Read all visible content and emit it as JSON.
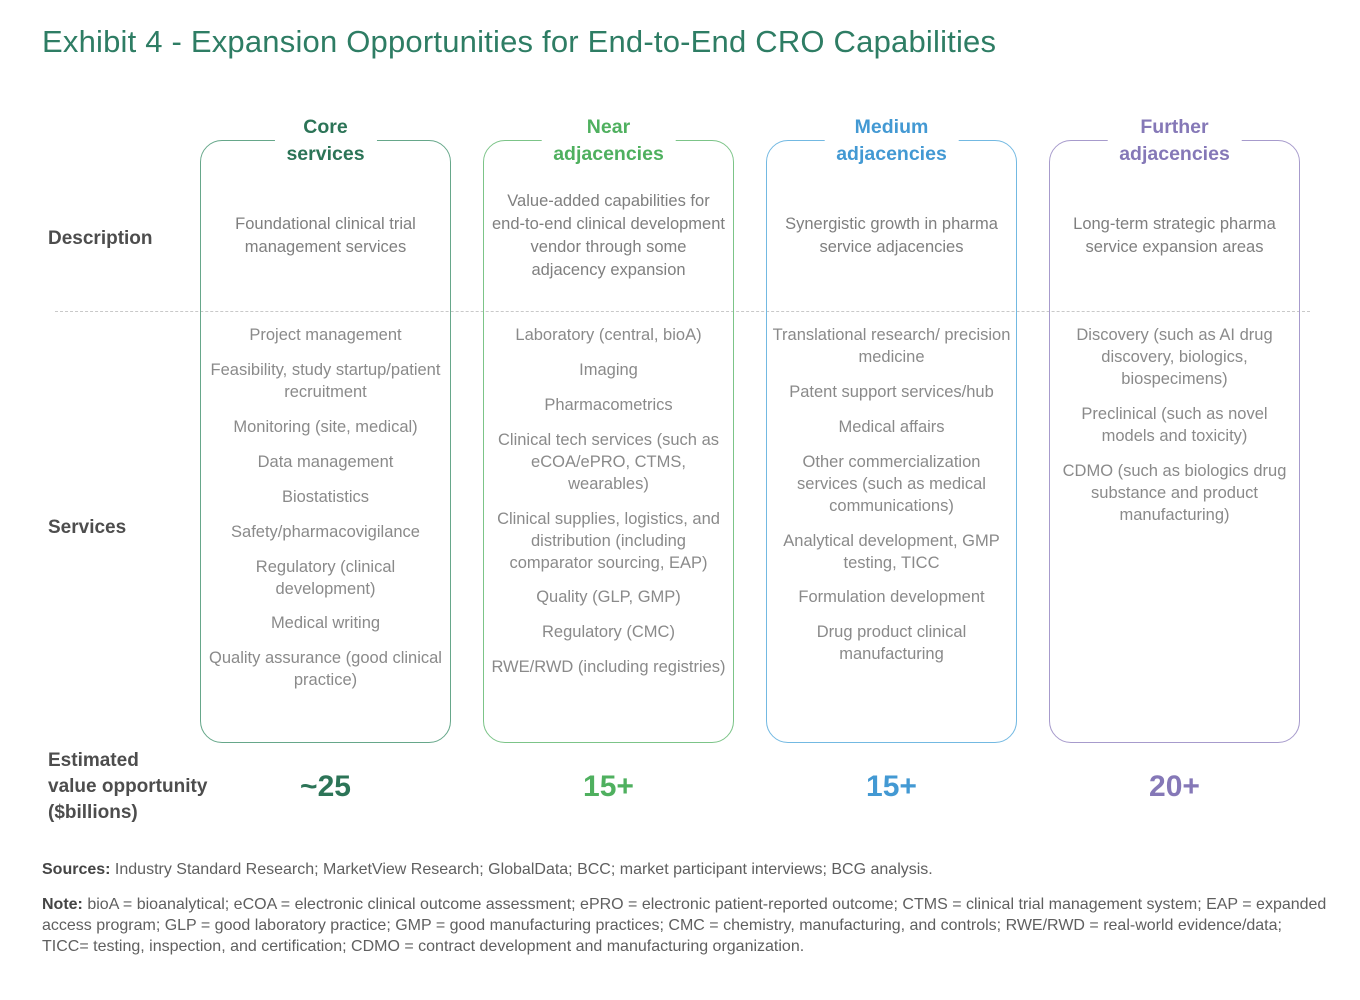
{
  "title": "Exhibit 4 - Expansion Opportunities for End-to-End CRO Capabilities",
  "title_color": "#2e7d64",
  "row_labels": {
    "description": "Description",
    "services": "Services",
    "value_line1": "Estimated",
    "value_line2": "value opportunity",
    "value_line3": "($billions)"
  },
  "columns": [
    {
      "header_line1": "Core",
      "header_line2": "services",
      "accent_color": "#2c7457",
      "border_color": "#66a78a",
      "description": "Foundational clinical trial management services",
      "services": [
        "Project management",
        "Feasibility, study startup/patient recruitment",
        "Monitoring (site, medical)",
        "Data management",
        "Biostatistics",
        "Safety/pharmacovigilance",
        "Regulatory (clinical development)",
        "Medical writing",
        "Quality assurance (good clinical practice)"
      ],
      "value": "~25"
    },
    {
      "header_line1": "Near",
      "header_line2": "adjacencies",
      "accent_color": "#4fb05f",
      "border_color": "#7cc488",
      "description": "Value-added capabilities for end-to-end clinical development vendor through some adjacency expansion",
      "services": [
        "Laboratory (central, bioA)",
        "Imaging",
        "Pharmacometrics",
        "Clinical tech services (such as eCOA/ePRO, CTMS, wearables)",
        "Clinical supplies, logistics, and distribution (including comparator sourcing, EAP)",
        "Quality (GLP, GMP)",
        "Regulatory (CMC)",
        "RWE/RWD (including registries)"
      ],
      "value": "15+"
    },
    {
      "header_line1": "Medium",
      "header_line2": "adjacencies",
      "accent_color": "#4399d3",
      "border_color": "#73b9e2",
      "description": "Synergistic growth in pharma service adjacencies",
      "services": [
        "Translational research/ precision medicine",
        "Patent support services/hub",
        "Medical affairs",
        "Other commercialization services (such as medical communications)",
        "Analytical development, GMP testing, TICC",
        "Formulation development",
        "Drug product clinical manufacturing"
      ],
      "value": "15+"
    },
    {
      "header_line1": "Further",
      "header_line2": "adjacencies",
      "accent_color": "#8578b7",
      "border_color": "#a79bcc",
      "description": "Long-term strategic pharma service expansion areas",
      "services": [
        "Discovery (such as AI drug discovery, biologics, biospecimens)",
        "Preclinical (such as novel models and toxicity)",
        "CDMO (such as biologics drug substance and product manufacturing)"
      ],
      "value": "20+"
    }
  ],
  "sources": {
    "label": "Sources:",
    "text": "Industry Standard Research; MarketView Research; GlobalData; BCC; market participant interviews; BCG analysis."
  },
  "note": {
    "label": "Note:",
    "text": "bioA = bioanalytical; eCOA = electronic clinical outcome assessment; ePRO = electronic patient-reported outcome; CTMS = clinical trial management system; EAP = expanded access program; GLP = good laboratory practice; GMP = good manufacturing practices; CMC = chemistry, manufacturing, and controls; RWE/RWD = real-world evidence/data; TICC= testing, inspection, and certification; CDMO = contract development and manufacturing organization."
  }
}
